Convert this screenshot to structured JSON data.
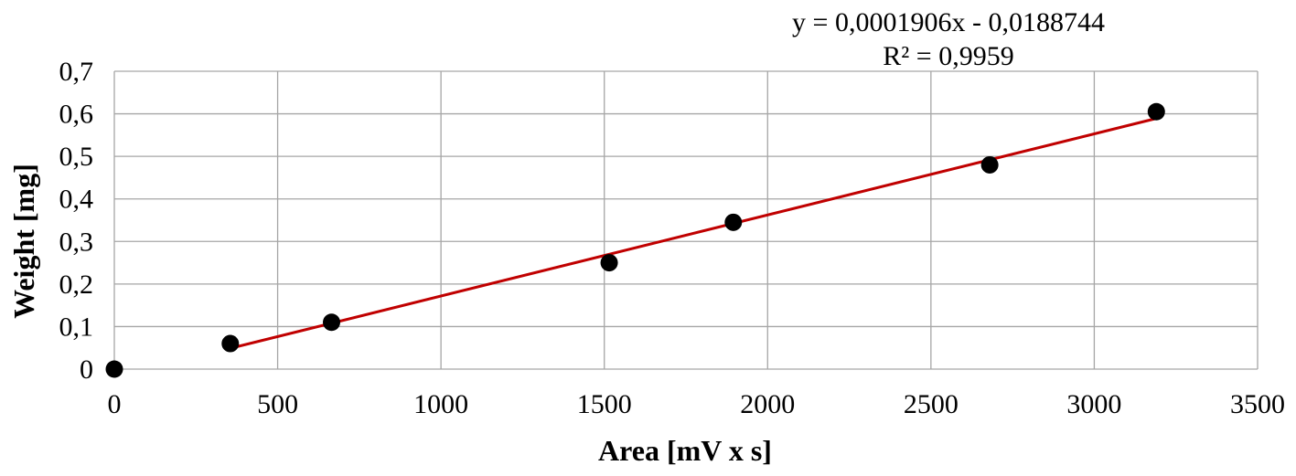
{
  "chart_data": {
    "type": "scatter",
    "xlabel": "Area [mV x s]",
    "ylabel": "Weight [mg]",
    "xlim": [
      0,
      3500
    ],
    "ylim": [
      0,
      0.7
    ],
    "x_ticks": [
      0,
      500,
      1000,
      1500,
      2000,
      2500,
      3000,
      3500
    ],
    "y_ticks": [
      0,
      0.1,
      0.2,
      0.3,
      0.4,
      0.5,
      0.6,
      0.7
    ],
    "x_tick_labels": [
      "0",
      "500",
      "1000",
      "1500",
      "2000",
      "2500",
      "3000",
      "3500"
    ],
    "y_tick_labels": [
      "0",
      "0,1",
      "0,2",
      "0,3",
      "0,4",
      "0,5",
      "0,6",
      "0,7"
    ],
    "grid": true,
    "points": [
      {
        "x": 0,
        "y": 0
      },
      {
        "x": 355,
        "y": 0.06
      },
      {
        "x": 665,
        "y": 0.11
      },
      {
        "x": 1515,
        "y": 0.25
      },
      {
        "x": 1895,
        "y": 0.345
      },
      {
        "x": 2680,
        "y": 0.48
      },
      {
        "x": 3190,
        "y": 0.605
      }
    ],
    "trendline": {
      "type": "linear",
      "slope": 0.0001906,
      "intercept": -0.0188744,
      "x_start": 355,
      "x_end": 3190,
      "equation": "y = 0,0001906x - 0,0188744",
      "r_squared": "R² = 0,9959"
    },
    "colors": {
      "points": "#000000",
      "trendline": "#c00000",
      "grid": "#a6a6a6"
    }
  }
}
